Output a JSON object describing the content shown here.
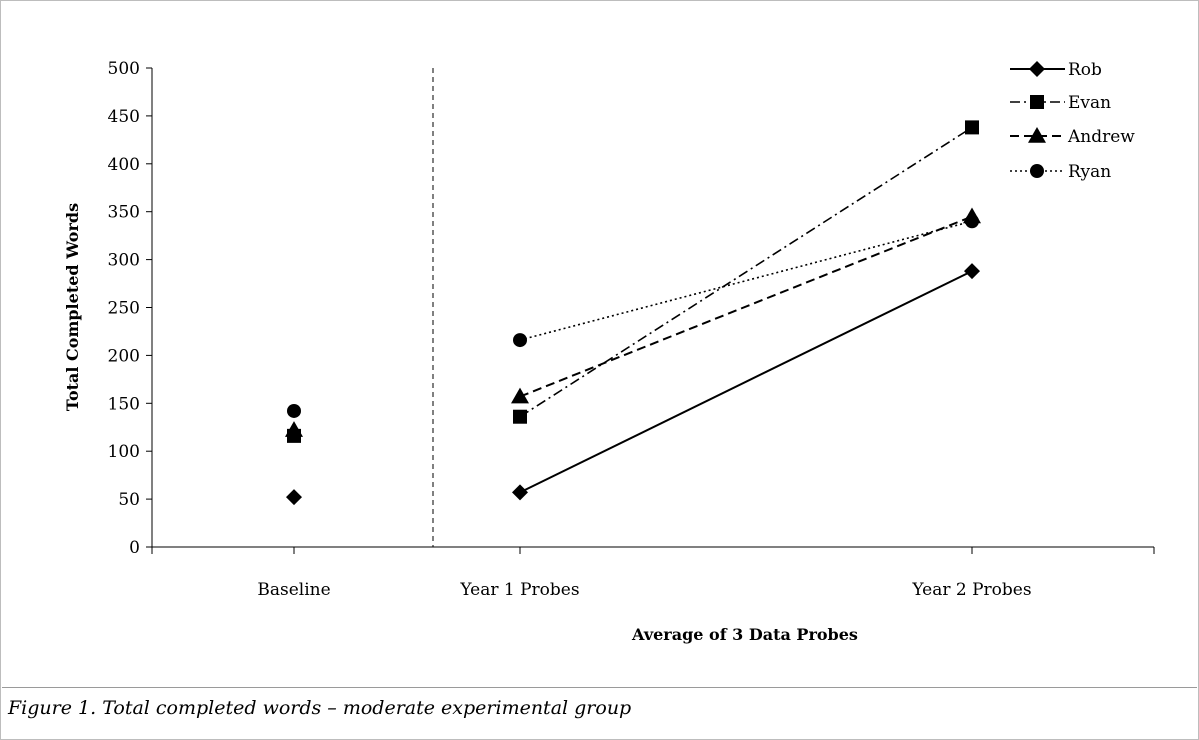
{
  "figure_caption": "Figure 1. Total completed words – moderate experimental group",
  "chart_data": {
    "type": "line",
    "title": "",
    "xlabel": "Average of 3 Data Probes",
    "ylabel": "Total Completed Words",
    "categories": [
      "Baseline",
      "Year 1 Probes",
      "Year 2 Probes"
    ],
    "ylim": [
      0,
      500
    ],
    "yticks": [
      0,
      50,
      100,
      150,
      200,
      250,
      300,
      350,
      400,
      450,
      500
    ],
    "grid": false,
    "legend_position": "top-right",
    "phase_divider_between": [
      "Baseline",
      "Year 1 Probes"
    ],
    "series": [
      {
        "name": "Rob",
        "marker": "diamond",
        "line_style": "solid",
        "values": [
          52,
          57,
          288
        ]
      },
      {
        "name": "Evan",
        "marker": "square",
        "line_style": "dash-dot",
        "values": [
          116,
          136,
          438
        ]
      },
      {
        "name": "Andrew",
        "marker": "triangle",
        "line_style": "dashed",
        "values": [
          122,
          157,
          345
        ]
      },
      {
        "name": "Ryan",
        "marker": "circle",
        "line_style": "dotted",
        "values": [
          142,
          216,
          340
        ]
      }
    ]
  }
}
